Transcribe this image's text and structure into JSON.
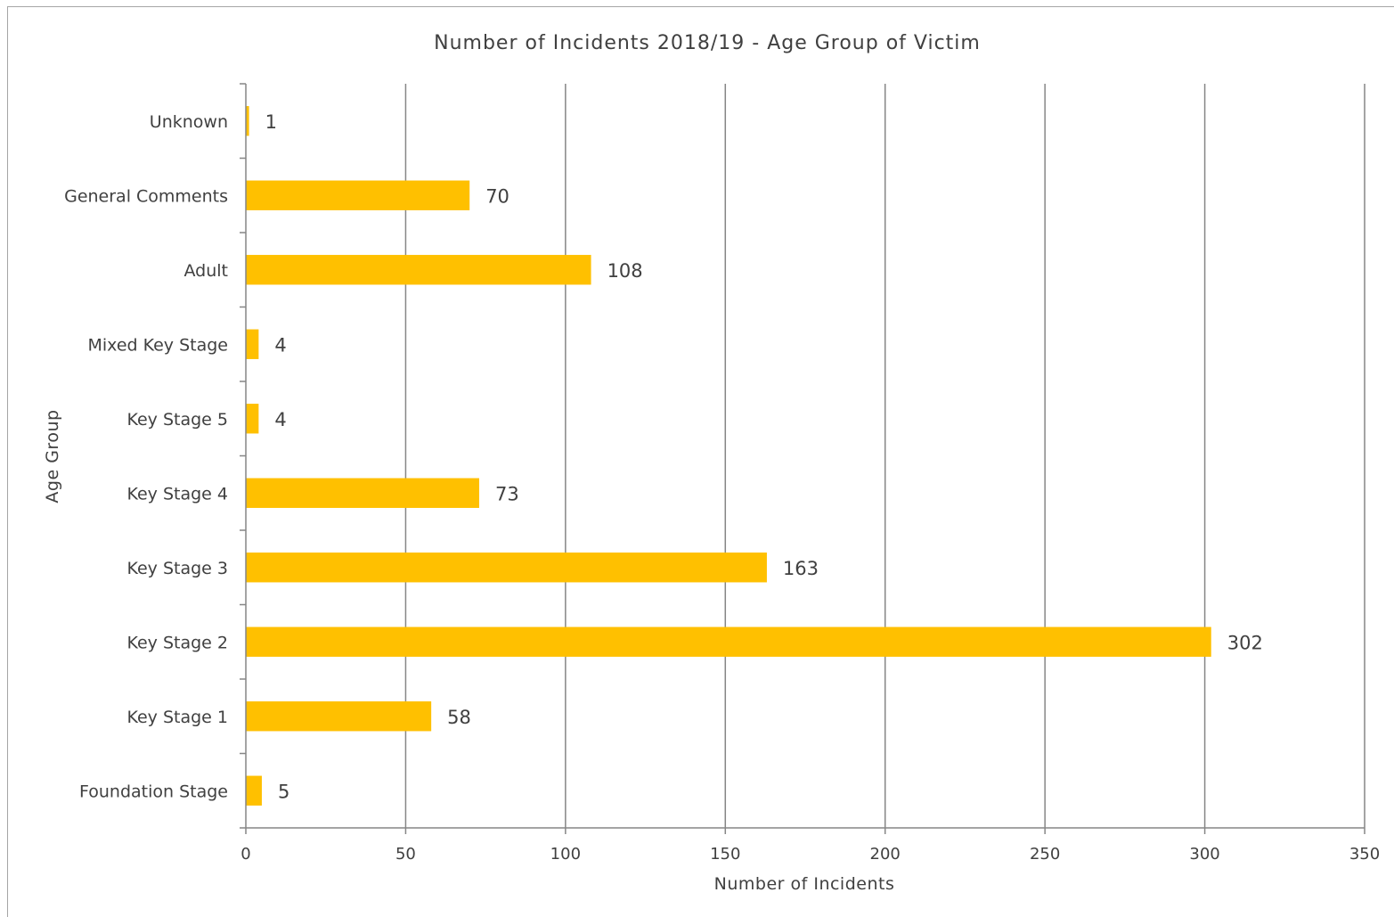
{
  "chart_data": {
    "type": "bar",
    "orientation": "horizontal",
    "title": "Number of Incidents 2018/19 - Age Group of Victim",
    "xlabel": "Number of Incidents",
    "ylabel": "Age Group",
    "categories": [
      "Unknown",
      "General Comments",
      "Adult",
      "Mixed Key Stage",
      "Key Stage 5",
      "Key Stage 4",
      "Key Stage 3",
      "Key Stage 2",
      "Key Stage 1",
      "Foundation Stage"
    ],
    "values": [
      1,
      70,
      108,
      4,
      4,
      73,
      163,
      302,
      58,
      5
    ],
    "xlim": [
      0,
      350
    ],
    "xticks": [
      0,
      50,
      100,
      150,
      200,
      250,
      300,
      350
    ],
    "grid": "vertical",
    "legend": "none",
    "data_labels": true,
    "colors": {
      "bar": "#FFC000",
      "grid": "#868686",
      "axis": "#868686"
    }
  }
}
